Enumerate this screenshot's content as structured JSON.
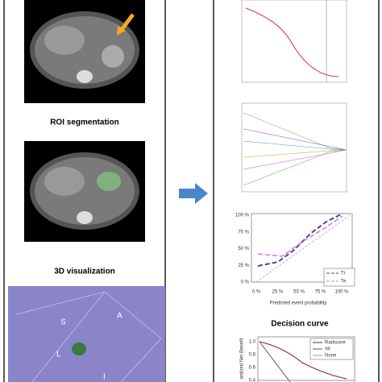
{
  "left": {
    "roi_label": "ROI segmentation",
    "viz_label": "3D visualization",
    "orientation": {
      "s": "S",
      "a": "A",
      "l": "L",
      "i": "I"
    }
  },
  "calibration": {
    "yticks": [
      "100 %",
      "75 %",
      "50 %",
      "25 %",
      "0 %"
    ],
    "xticks": [
      "0 %",
      "25 %",
      "50 %",
      "75 %",
      "100 %"
    ],
    "xlabel": "Predicted event probability",
    "legend": [
      "Tr",
      "Te"
    ]
  },
  "decision": {
    "title": "Decision curve",
    "ylabel": "ardized Net Benefit",
    "yticks": [
      "1.0",
      "0.8",
      "0.6",
      "0.4"
    ],
    "legend": [
      "Radscore",
      "All",
      "None"
    ]
  }
}
